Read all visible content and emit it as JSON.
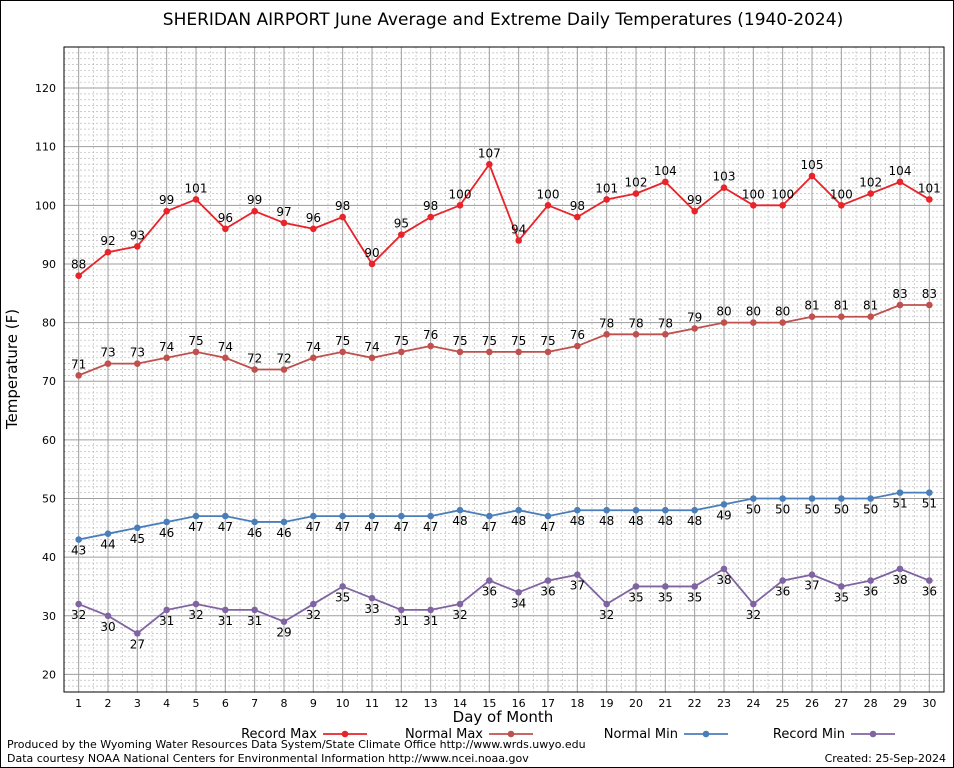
{
  "chart_data": {
    "type": "line",
    "title": "SHERIDAN AIRPORT June Average and Extreme Daily Temperatures (1940-2024)",
    "xlabel": "Day of Month",
    "ylabel": "Temperature (F)",
    "x": [
      1,
      2,
      3,
      4,
      5,
      6,
      7,
      8,
      9,
      10,
      11,
      12,
      13,
      14,
      15,
      16,
      17,
      18,
      19,
      20,
      21,
      22,
      23,
      24,
      25,
      26,
      27,
      28,
      29,
      30
    ],
    "xlim": [
      0.5,
      30.5
    ],
    "ylim": [
      17,
      127
    ],
    "yticks": [
      20,
      30,
      40,
      50,
      60,
      70,
      80,
      90,
      100,
      110,
      120
    ],
    "grid": true,
    "legend_position": "bottom",
    "series": [
      {
        "name": "Record Max",
        "color": "#e8232a",
        "label_position": "above",
        "values": [
          88,
          92,
          93,
          99,
          101,
          96,
          99,
          97,
          96,
          98,
          90,
          95,
          98,
          100,
          107,
          94,
          100,
          98,
          101,
          102,
          104,
          99,
          103,
          100,
          100,
          105,
          100,
          102,
          104,
          101
        ]
      },
      {
        "name": "Normal Max",
        "color": "#c0504d",
        "label_position": "above",
        "values": [
          71,
          73,
          73,
          74,
          75,
          74,
          72,
          72,
          74,
          75,
          74,
          75,
          76,
          75,
          75,
          75,
          75,
          76,
          78,
          78,
          78,
          79,
          80,
          80,
          80,
          81,
          81,
          81,
          83,
          83
        ]
      },
      {
        "name": "Normal Min",
        "color": "#4a7ebb",
        "label_position": "below",
        "values": [
          43,
          44,
          45,
          46,
          47,
          47,
          46,
          46,
          47,
          47,
          47,
          47,
          47,
          48,
          47,
          48,
          47,
          48,
          48,
          48,
          48,
          48,
          49,
          50,
          50,
          50,
          50,
          50,
          51,
          51
        ]
      },
      {
        "name": "Record Min",
        "color": "#8064a2",
        "label_position": "below",
        "values": [
          32,
          30,
          27,
          31,
          32,
          31,
          31,
          29,
          32,
          35,
          33,
          31,
          31,
          32,
          36,
          34,
          36,
          37,
          32,
          35,
          35,
          35,
          38,
          32,
          36,
          37,
          35,
          36,
          38,
          36
        ]
      }
    ]
  },
  "footer": {
    "credit_line1": "Produced by the Wyoming Water Resources Data System/State Climate Office http://www.wrds.uwyo.edu",
    "credit_line2": "Data courtesy NOAA National Centers for Environmental Information http://www.ncei.noaa.gov",
    "created": "Created:  25-Sep-2024"
  }
}
